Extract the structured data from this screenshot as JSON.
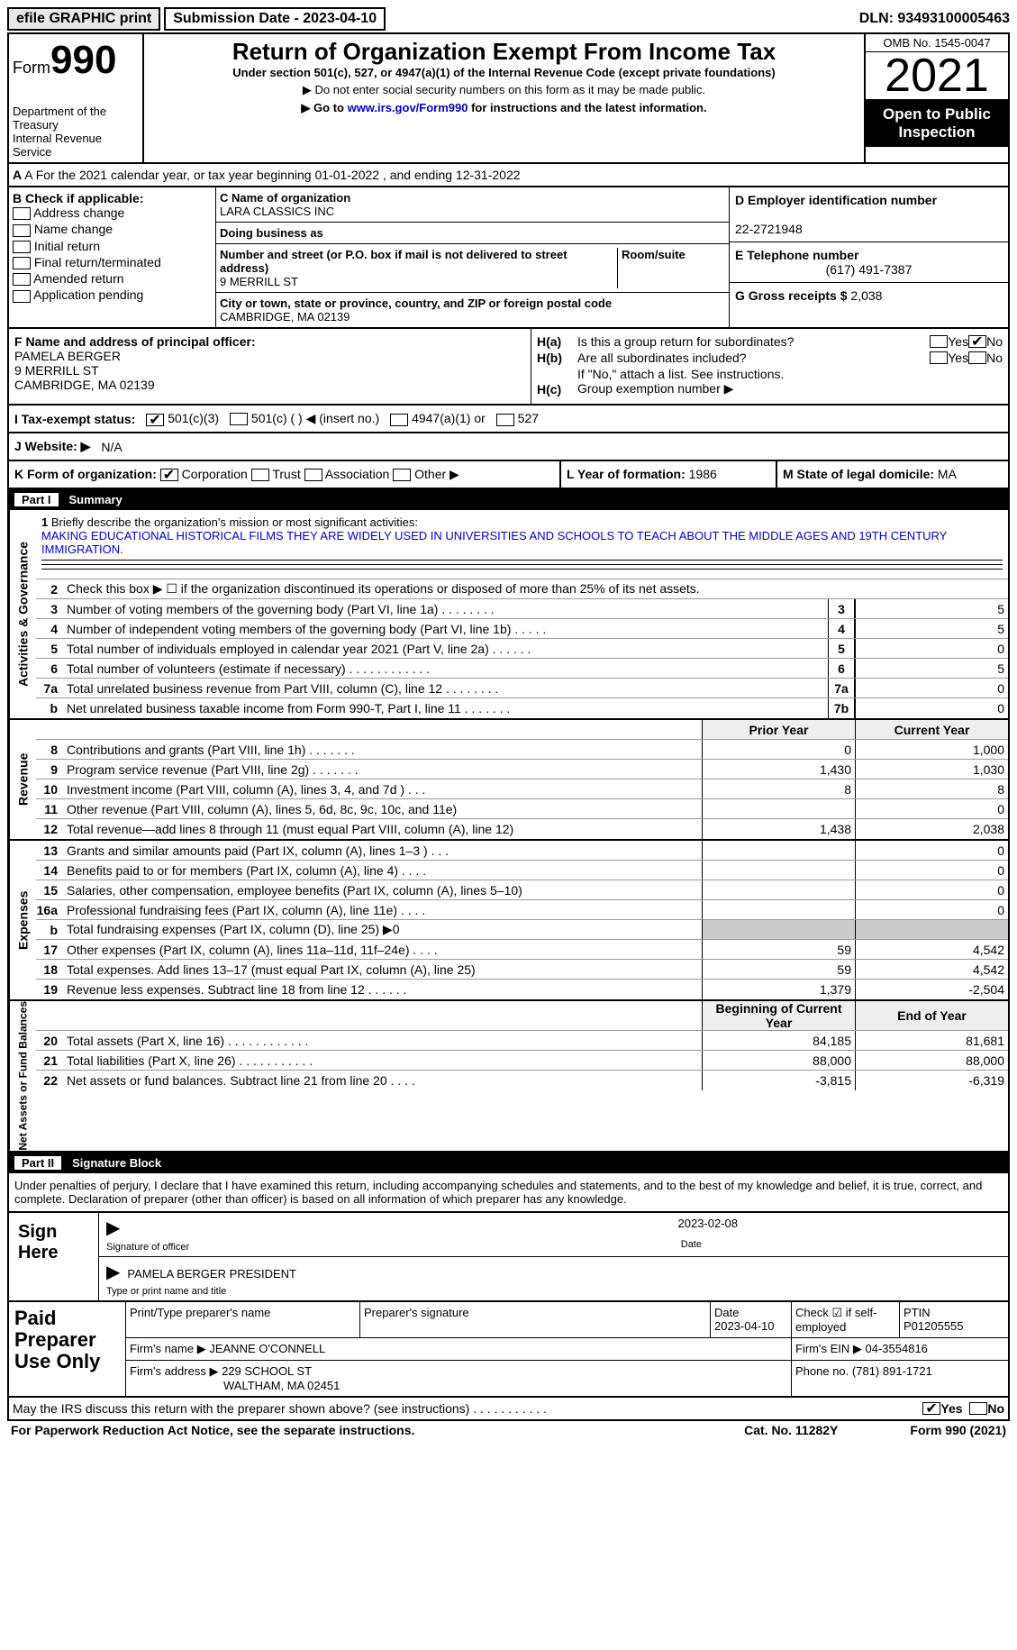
{
  "topbar": {
    "efile": "efile GRAPHIC print",
    "sub_label": "Submission Date - 2023-04-10",
    "dln": "DLN: 93493100005463"
  },
  "header": {
    "form": "Form",
    "num": "990",
    "dept": "Department of the Treasury",
    "irs": "Internal Revenue Service",
    "title": "Return of Organization Exempt From Income Tax",
    "sub1": "Under section 501(c), 527, or 4947(a)(1) of the Internal Revenue Code (except private foundations)",
    "sub2a": "▶ Do not enter social security numbers on this form as it may be made public.",
    "sub2b": "▶ Go to ",
    "link": "www.irs.gov/Form990",
    "sub2c": " for instructions and the latest information.",
    "omb": "OMB No. 1545-0047",
    "year": "2021",
    "open": "Open to Public Inspection"
  },
  "rowA": "A For the 2021 calendar year, or tax year beginning 01-01-2022    , and ending 12-31-2022",
  "B": {
    "label": "B Check if applicable:",
    "opts": [
      "Address change",
      "Name change",
      "Initial return",
      "Final return/terminated",
      "Amended return",
      "Application pending"
    ]
  },
  "C": {
    "name_label": "C Name of organization",
    "name": "LARA CLASSICS INC",
    "dba_label": "Doing business as",
    "street_label": "Number and street (or P.O. box if mail is not delivered to street address)",
    "room_label": "Room/suite",
    "street": "9 MERRILL ST",
    "city_label": "City or town, state or province, country, and ZIP or foreign postal code",
    "city": "CAMBRIDGE, MA  02139"
  },
  "D": {
    "label": "D Employer identification number",
    "val": "22-2721948"
  },
  "E": {
    "label": "E Telephone number",
    "val": "(617) 491-7387"
  },
  "G": {
    "label": "G Gross receipts $",
    "val": "2,038"
  },
  "F": {
    "label": "F Name and address of principal officer:",
    "name": "PAMELA BERGER",
    "street": "9 MERRILL ST",
    "city": "CAMBRIDGE, MA  02139"
  },
  "H": {
    "a": "Is this a group return for subordinates?",
    "b": "Are all subordinates included?",
    "note": "If \"No,\" attach a list. See instructions.",
    "c": "Group exemption number ▶",
    "yes": "Yes",
    "no": "No"
  },
  "I": {
    "label": "I    Tax-exempt status:",
    "o1": "501(c)(3)",
    "o2": "501(c) (  ) ◀ (insert no.)",
    "o3": "4947(a)(1) or",
    "o4": "527"
  },
  "J": {
    "label": "J    Website: ▶",
    "val": "N/A"
  },
  "K": {
    "label": "K Form of organization:",
    "o1": "Corporation",
    "o2": "Trust",
    "o3": "Association",
    "o4": "Other ▶"
  },
  "L": {
    "label": "L Year of formation:",
    "val": "1986"
  },
  "M": {
    "label": "M State of legal domicile:",
    "val": "MA"
  },
  "part1": {
    "num": "Part I",
    "title": "Summary"
  },
  "s1": {
    "vlab_ag": "Activities & Governance",
    "vlab_rev": "Revenue",
    "vlab_exp": "Expenses",
    "vlab_na": "Net Assets or Fund Balances",
    "l1_label": "Briefly describe the organization's mission or most significant activities:",
    "l1_text": "MAKING EDUCATIONAL HISTORICAL FILMS THEY ARE WIDELY USED IN UNIVERSITIES AND SCHOOLS TO TEACH ABOUT THE MIDDLE AGES AND 19TH CENTURY IMMIGRATION.",
    "l2": "Check this box ▶ ☐ if the organization discontinued its operations or disposed of more than 25% of its net assets.",
    "rows_ag": [
      {
        "n": "3",
        "d": "Number of voting members of the governing body (Part VI, line 1a)   .    .    .    .    .    .    .    .",
        "box": "3",
        "v": "5"
      },
      {
        "n": "4",
        "d": "Number of independent voting members of the governing body (Part VI, line 1b)   .    .    .    .    .",
        "box": "4",
        "v": "5"
      },
      {
        "n": "5",
        "d": "Total number of individuals employed in calendar year 2021 (Part V, line 2a)   .    .    .    .    .    .",
        "box": "5",
        "v": "0"
      },
      {
        "n": "6",
        "d": "Total number of volunteers (estimate if necessary)     .    .    .    .    .    .    .    .    .    .    .    .",
        "box": "6",
        "v": "5"
      },
      {
        "n": "7a",
        "d": "Total unrelated business revenue from Part VIII, column (C), line 12    .    .    .    .    .    .    .    .",
        "box": "7a",
        "v": "0"
      },
      {
        "n": "b",
        "d": "Net unrelated business taxable income from Form 990-T, Part I, line 11   .    .    .    .    .    .    .",
        "box": "7b",
        "v": "0"
      }
    ],
    "col_prior": "Prior Year",
    "col_curr": "Current Year",
    "rows_rev": [
      {
        "n": "8",
        "d": "Contributions and grants (Part VIII, line 1h)    .    .    .    .    .    .    .",
        "p": "0",
        "c": "1,000"
      },
      {
        "n": "9",
        "d": "Program service revenue (Part VIII, line 2g)    .    .    .    .    .    .    .",
        "p": "1,430",
        "c": "1,030"
      },
      {
        "n": "10",
        "d": "Investment income (Part VIII, column (A), lines 3, 4, and 7d )   .    .    .",
        "p": "8",
        "c": "8"
      },
      {
        "n": "11",
        "d": "Other revenue (Part VIII, column (A), lines 5, 6d, 8c, 9c, 10c, and 11e)",
        "p": "",
        "c": "0"
      },
      {
        "n": "12",
        "d": "Total revenue—add lines 8 through 11 (must equal Part VIII, column (A), line 12)",
        "p": "1,438",
        "c": "2,038"
      }
    ],
    "rows_exp": [
      {
        "n": "13",
        "d": "Grants and similar amounts paid (Part IX, column (A), lines 1–3 )   .    .    .",
        "p": "",
        "c": "0"
      },
      {
        "n": "14",
        "d": "Benefits paid to or for members (Part IX, column (A), line 4)    .    .    .    .",
        "p": "",
        "c": "0"
      },
      {
        "n": "15",
        "d": "Salaries, other compensation, employee benefits (Part IX, column (A), lines 5–10)",
        "p": "",
        "c": "0"
      },
      {
        "n": "16a",
        "d": "Professional fundraising fees (Part IX, column (A), line 11e)    .    .    .    .",
        "p": "",
        "c": "0"
      },
      {
        "n": "b",
        "d": "Total fundraising expenses (Part IX, column (D), line 25) ▶0",
        "p": "grey",
        "c": "grey"
      },
      {
        "n": "17",
        "d": "Other expenses (Part IX, column (A), lines 11a–11d, 11f–24e)   .    .    .    .",
        "p": "59",
        "c": "4,542"
      },
      {
        "n": "18",
        "d": "Total expenses. Add lines 13–17 (must equal Part IX, column (A), line 25)",
        "p": "59",
        "c": "4,542"
      },
      {
        "n": "19",
        "d": "Revenue less expenses. Subtract line 18 from line 12   .    .    .    .    .    .",
        "p": "1,379",
        "c": "-2,504"
      }
    ],
    "col_beg": "Beginning of Current Year",
    "col_end": "End of Year",
    "rows_na": [
      {
        "n": "20",
        "d": "Total assets (Part X, line 16)   .    .    .    .    .    .    .    .    .    .    .    .",
        "p": "84,185",
        "c": "81,681"
      },
      {
        "n": "21",
        "d": "Total liabilities (Part X, line 26)    .    .    .    .    .    .    .    .    .    .    .",
        "p": "88,000",
        "c": "88,000"
      },
      {
        "n": "22",
        "d": "Net assets or fund balances. Subtract line 21 from line 20   .    .    .    .",
        "p": "-3,815",
        "c": "-6,319"
      }
    ]
  },
  "part2": {
    "num": "Part II",
    "title": "Signature Block"
  },
  "sig": {
    "decl": "Under penalties of perjury, I declare that I have examined this return, including accompanying schedules and statements, and to the best of my knowledge and belief, it is true, correct, and complete. Declaration of preparer (other than officer) is based on all information of which preparer has any knowledge.",
    "sign_here": "Sign Here",
    "sig_officer": "Signature of officer",
    "sig_date": "2023-02-08",
    "date_lbl": "Date",
    "name": "PAMELA BERGER  PRESIDENT",
    "name_lbl": "Type or print name and title"
  },
  "prep": {
    "title": "Paid Preparer Use Only",
    "h1": "Print/Type preparer's name",
    "h2": "Preparer's signature",
    "h3": "Date",
    "h3v": "2023-04-10",
    "h4": "Check ☑ if self-employed",
    "h5": "PTIN",
    "h5v": "P01205555",
    "firm_lbl": "Firm's name    ▶",
    "firm": "JEANNE O'CONNELL",
    "ein_lbl": "Firm's EIN ▶",
    "ein": "04-3554816",
    "addr_lbl": "Firm's address ▶",
    "addr": "229 SCHOOL ST",
    "addr2": "WALTHAM, MA  02451",
    "phone_lbl": "Phone no.",
    "phone": "(781) 891-1721"
  },
  "footer": {
    "q": "May the IRS discuss this return with the preparer shown above? (see instructions)    .    .    .    .    .    .    .    .    .    .    .",
    "yes": "Yes",
    "no": "No"
  },
  "footer2": {
    "l": "For Paperwork Reduction Act Notice, see the separate instructions.",
    "m": "Cat. No. 11282Y",
    "r": "Form 990 (2021)"
  }
}
